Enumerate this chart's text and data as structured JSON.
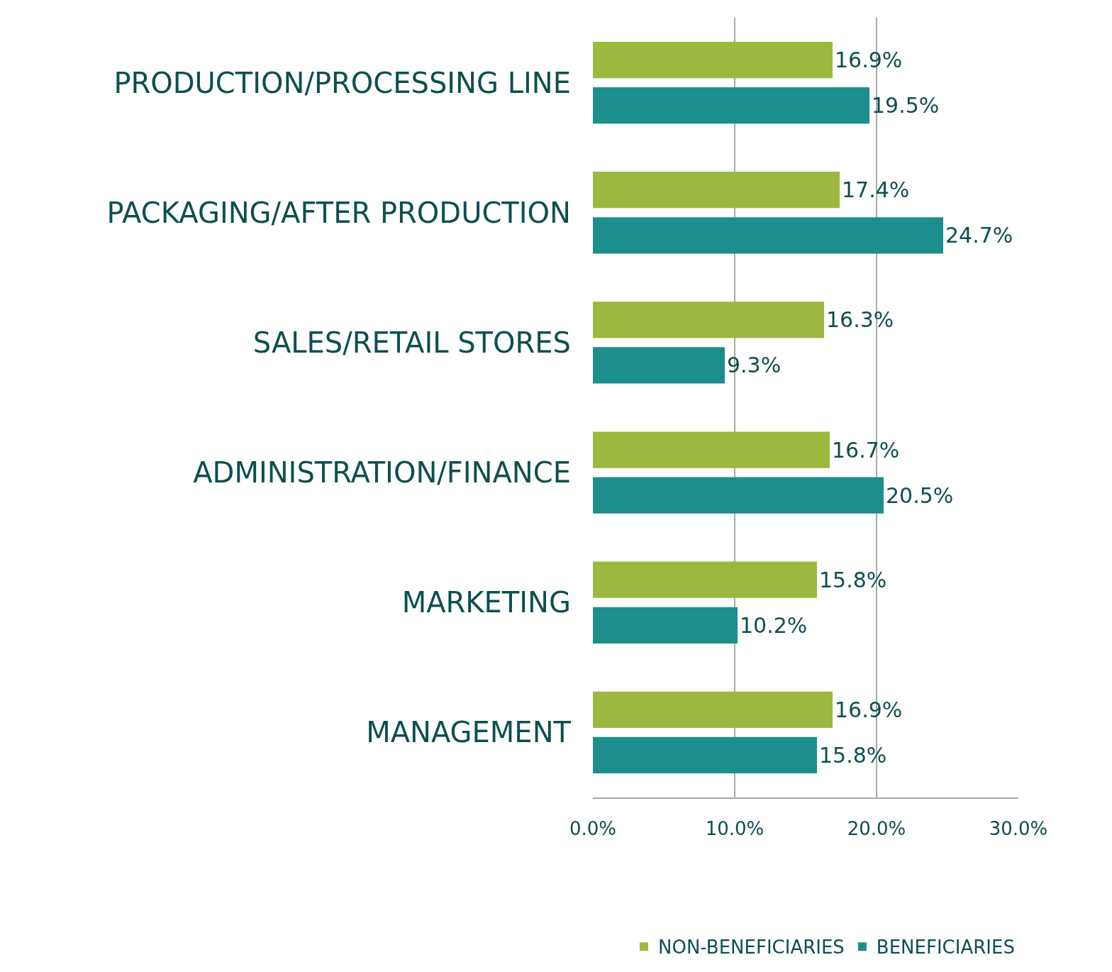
{
  "chart_data": {
    "type": "bar",
    "orientation": "horizontal",
    "categories": [
      "PRODUCTION/PROCESSING LINE",
      "PACKAGING/AFTER PRODUCTION",
      "SALES/RETAIL STORES",
      "ADMINISTRATION/FINANCE",
      "MARKETING",
      "MANAGEMENT"
    ],
    "series": [
      {
        "name": "NON-BENEFICIARIES",
        "color": "#9db83f",
        "values": [
          16.9,
          17.4,
          16.3,
          16.7,
          15.8,
          16.9
        ],
        "value_labels": [
          "16.9%",
          "17.4%",
          "16.3%",
          "16.7%",
          "15.8%",
          "16.9%"
        ]
      },
      {
        "name": "BENEFICIARIES",
        "color": "#1c8e8e",
        "values": [
          19.5,
          24.7,
          9.3,
          20.5,
          10.2,
          15.8
        ],
        "value_labels": [
          "19.5%",
          "24.7%",
          "9.3%",
          "20.5%",
          "10.2%",
          "15.8%"
        ]
      }
    ],
    "xlim": [
      0,
      30
    ],
    "xticks": [
      {
        "value": 0,
        "label": "0.0%"
      },
      {
        "value": 10,
        "label": "10.0%"
      },
      {
        "value": 20,
        "label": "20.0%"
      },
      {
        "value": 30,
        "label": "30.0%"
      }
    ],
    "grid": "x",
    "legend": "bottom right"
  }
}
